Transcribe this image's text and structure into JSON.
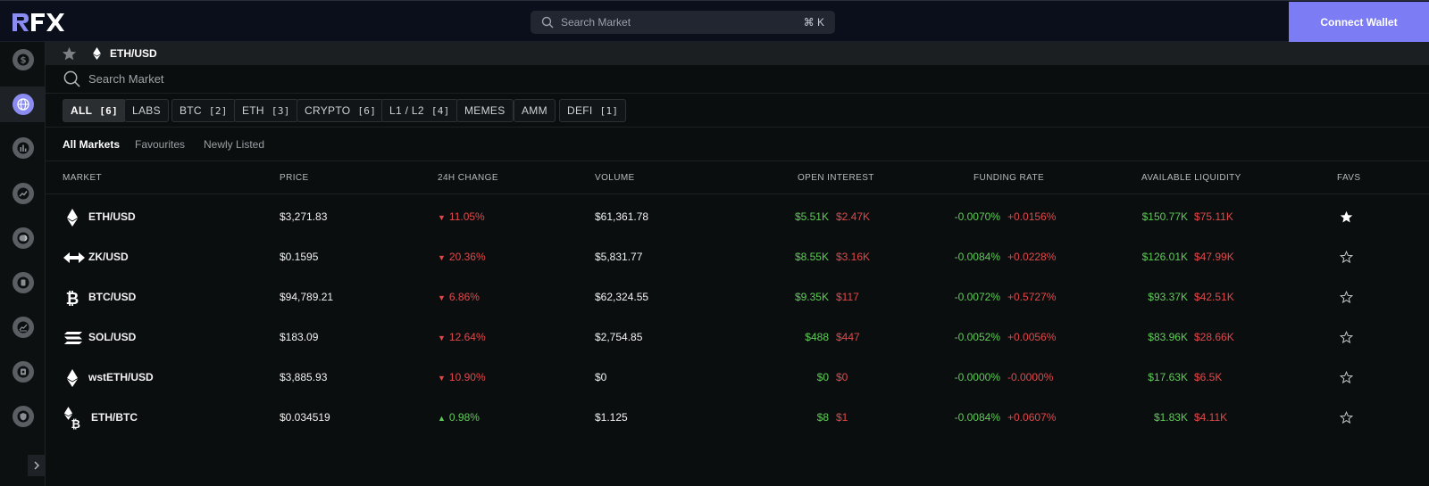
{
  "topbar": {
    "search_placeholder": "Search Market",
    "shortcut": "⌘ K",
    "connect_label": "Connect Wallet"
  },
  "sidebar": {
    "items": [
      {
        "icon": "dollar-icon"
      },
      {
        "icon": "globe-icon",
        "active": true
      },
      {
        "icon": "bar-chart-icon"
      },
      {
        "icon": "trend-icon"
      },
      {
        "icon": "coin-stack-icon"
      },
      {
        "icon": "reward-icon"
      },
      {
        "icon": "line-chart-icon"
      },
      {
        "icon": "vault-icon"
      },
      {
        "icon": "shield-icon"
      }
    ]
  },
  "header": {
    "pair": "ETH/USD"
  },
  "search": {
    "placeholder": "Search Market"
  },
  "filters": [
    {
      "label": "ALL",
      "count": "[6]",
      "active": true
    },
    {
      "label": "LABS",
      "count": ""
    },
    {
      "label": "BTC",
      "count": "[2]"
    },
    {
      "label": "ETH",
      "count": "[3]"
    },
    {
      "label": "CRYPTO",
      "count": "[6]"
    },
    {
      "label": "L1 / L2",
      "count": "[4]"
    },
    {
      "label": "MEMES",
      "count": ""
    },
    {
      "label": "AMM",
      "count": ""
    },
    {
      "label": "DEFI",
      "count": "[1]"
    }
  ],
  "tabs": [
    "All Markets",
    "Favourites",
    "Newly Listed"
  ],
  "columns": {
    "market": "MARKET",
    "price": "PRICE",
    "change": "24H CHANGE",
    "volume": "VOLUME",
    "open_interest": "OPEN INTEREST",
    "funding_rate": "FUNDING RATE",
    "liquidity": "AVAILABLE LIQUIDITY",
    "favs": "FAVS"
  },
  "rows": [
    {
      "pair": "ETH/USD",
      "icon": "eth-icon",
      "price": "$3,271.83",
      "change": "11.05%",
      "change_dir": "down",
      "volume": "$61,361.78",
      "oi_long": "$5.51K",
      "oi_short": "$2.47K",
      "fr_long": "-0.0070%",
      "fr_short": "+0.0156%",
      "liq_long": "$150.77K",
      "liq_short": "$75.11K",
      "fav": true
    },
    {
      "pair": "ZK/USD",
      "icon": "zk-icon",
      "price": "$0.1595",
      "change": "20.36%",
      "change_dir": "down",
      "volume": "$5,831.77",
      "oi_long": "$8.55K",
      "oi_short": "$3.16K",
      "fr_long": "-0.0084%",
      "fr_short": "+0.0228%",
      "liq_long": "$126.01K",
      "liq_short": "$47.99K",
      "fav": false
    },
    {
      "pair": "BTC/USD",
      "icon": "btc-icon",
      "price": "$94,789.21",
      "change": "6.86%",
      "change_dir": "down",
      "volume": "$62,324.55",
      "oi_long": "$9.35K",
      "oi_short": "$117",
      "fr_long": "-0.0072%",
      "fr_short": "+0.5727%",
      "liq_long": "$93.37K",
      "liq_short": "$42.51K",
      "fav": false
    },
    {
      "pair": "SOL/USD",
      "icon": "sol-icon",
      "price": "$183.09",
      "change": "12.64%",
      "change_dir": "down",
      "volume": "$2,754.85",
      "oi_long": "$488",
      "oi_short": "$447",
      "fr_long": "-0.0052%",
      "fr_short": "+0.0056%",
      "liq_long": "$83.96K",
      "liq_short": "$28.66K",
      "fav": false
    },
    {
      "pair": "wstETH/USD",
      "icon": "wsteth-icon",
      "price": "$3,885.93",
      "change": "10.90%",
      "change_dir": "down",
      "volume": "$0",
      "oi_long": "$0",
      "oi_short": "$0",
      "fr_long": "-0.0000%",
      "fr_short": "-0.0000%",
      "liq_long": "$17.63K",
      "liq_short": "$6.5K",
      "fav": false
    },
    {
      "pair": "ETH/BTC",
      "icon": "eth-btc-icon",
      "price": "$0.034519",
      "change": "0.98%",
      "change_dir": "up",
      "volume": "$1.125",
      "oi_long": "$8",
      "oi_short": "$1",
      "fr_long": "-0.0084%",
      "fr_short": "+0.0607%",
      "liq_long": "$1.83K",
      "liq_short": "$4.11K",
      "fav": false
    }
  ]
}
